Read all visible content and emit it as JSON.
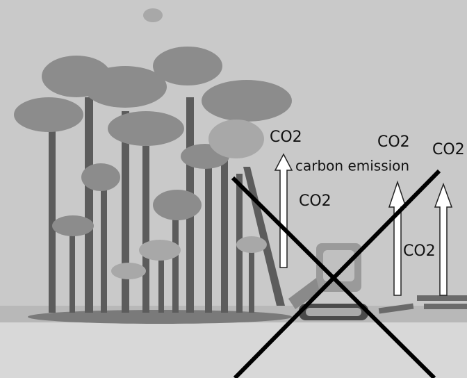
{
  "labels": [
    "CO2",
    "CO2",
    "CO2",
    "carbon emission",
    "CO2",
    "CO2"
  ]
}
